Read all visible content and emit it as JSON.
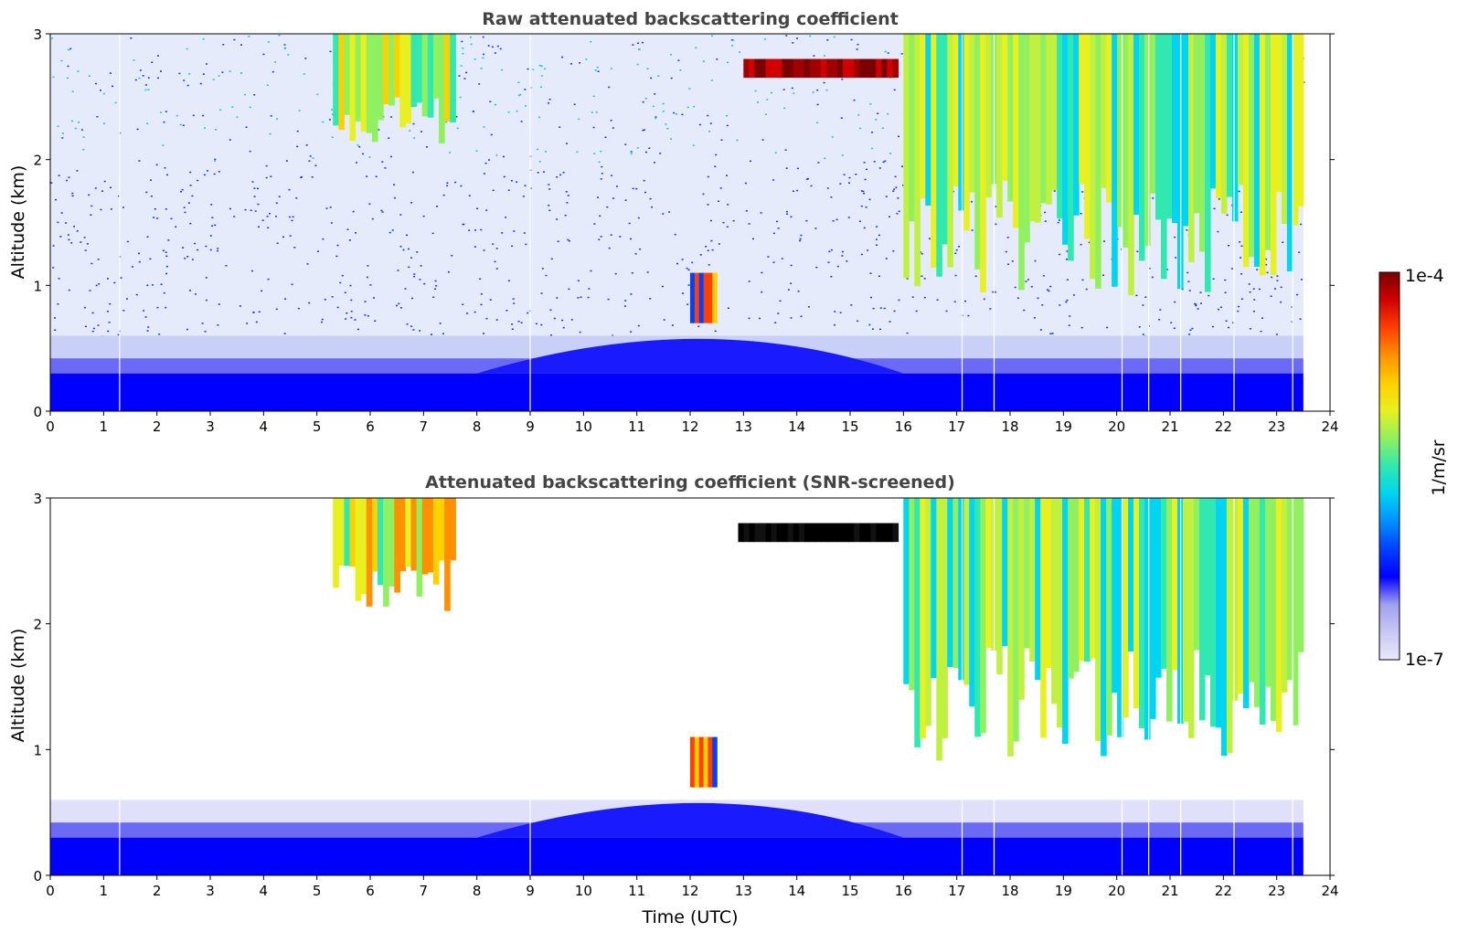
{
  "chart_data": [
    {
      "type": "heatmap",
      "title": "Raw attenuated backscattering coefficient",
      "xlabel": "",
      "ylabel": "Altitude (km)",
      "xlim": [
        0,
        24
      ],
      "ylim": [
        0,
        3
      ],
      "xticks": [
        "0",
        "1",
        "2",
        "3",
        "4",
        "5",
        "6",
        "7",
        "8",
        "9",
        "10",
        "11",
        "12",
        "13",
        "14",
        "15",
        "16",
        "17",
        "18",
        "19",
        "20",
        "21",
        "22",
        "23",
        "24"
      ],
      "yticks": [
        "0",
        "1",
        "2",
        "3"
      ],
      "data_end_hour": 23.5,
      "features": [
        {
          "name": "boundary-layer aerosol",
          "t_start": 0,
          "t_end": 23.5,
          "alt_top_km": 0.6,
          "level": "low"
        },
        {
          "name": "low cloud",
          "t_start": 12.0,
          "t_end": 12.5,
          "alt_bottom_km": 0.7,
          "alt_top_km": 1.1,
          "level": "high"
        },
        {
          "name": "thick cloud layer",
          "t_start": 13.0,
          "t_end": 15.9,
          "alt_bottom_km": 2.65,
          "alt_top_km": 2.8,
          "level": "max"
        },
        {
          "name": "mid-level cloud",
          "t_start": 5.3,
          "t_end": 7.6,
          "alt_bottom_km": 2.1,
          "alt_top_km": 3.0,
          "level": "mid-high"
        },
        {
          "name": "cirrus / mid cloud",
          "t_start": 16.0,
          "t_end": 23.5,
          "alt_bottom_km": 0.9,
          "alt_top_km": 3.0,
          "level": "mid"
        }
      ]
    },
    {
      "type": "heatmap",
      "title": "Attenuated backscattering coefficient (SNR-screened)",
      "xlabel": "Time (UTC)",
      "ylabel": "Altitude (km)",
      "xlim": [
        0,
        24
      ],
      "ylim": [
        0,
        3
      ],
      "xticks": [
        "0",
        "1",
        "2",
        "3",
        "4",
        "5",
        "6",
        "7",
        "8",
        "9",
        "10",
        "11",
        "12",
        "13",
        "14",
        "15",
        "16",
        "17",
        "18",
        "19",
        "20",
        "21",
        "22",
        "23",
        "24"
      ],
      "yticks": [
        "0",
        "1",
        "2",
        "3"
      ],
      "data_end_hour": 23.5,
      "features": [
        {
          "name": "boundary-layer aerosol",
          "t_start": 0,
          "t_end": 23.5,
          "alt_top_km": 0.6,
          "level": "low"
        },
        {
          "name": "low cloud",
          "t_start": 12.0,
          "t_end": 12.5,
          "alt_bottom_km": 0.7,
          "alt_top_km": 1.1,
          "level": "high"
        },
        {
          "name": "thick cloud layer (saturated)",
          "t_start": 12.9,
          "t_end": 15.9,
          "alt_bottom_km": 2.65,
          "alt_top_km": 2.8,
          "level": "black"
        },
        {
          "name": "mid-level cloud",
          "t_start": 5.3,
          "t_end": 7.6,
          "alt_bottom_km": 2.1,
          "alt_top_km": 3.0,
          "level": "mid-high"
        },
        {
          "name": "cirrus / mid cloud",
          "t_start": 16.0,
          "t_end": 23.5,
          "alt_bottom_km": 0.9,
          "alt_top_km": 3.0,
          "level": "mid"
        }
      ]
    }
  ],
  "colorbar": {
    "max_label": "1e-4",
    "min_label": "1e-7",
    "unit_label": "1/m/sr",
    "colors": [
      "#e8e8fa",
      "#c8c8f5",
      "#9f9ff0",
      "#0000ff",
      "#0040ff",
      "#0090ff",
      "#00d4f0",
      "#30e8b0",
      "#90f060",
      "#e8f020",
      "#ffd000",
      "#ff9000",
      "#ff4000",
      "#d00000",
      "#7a0000"
    ]
  }
}
